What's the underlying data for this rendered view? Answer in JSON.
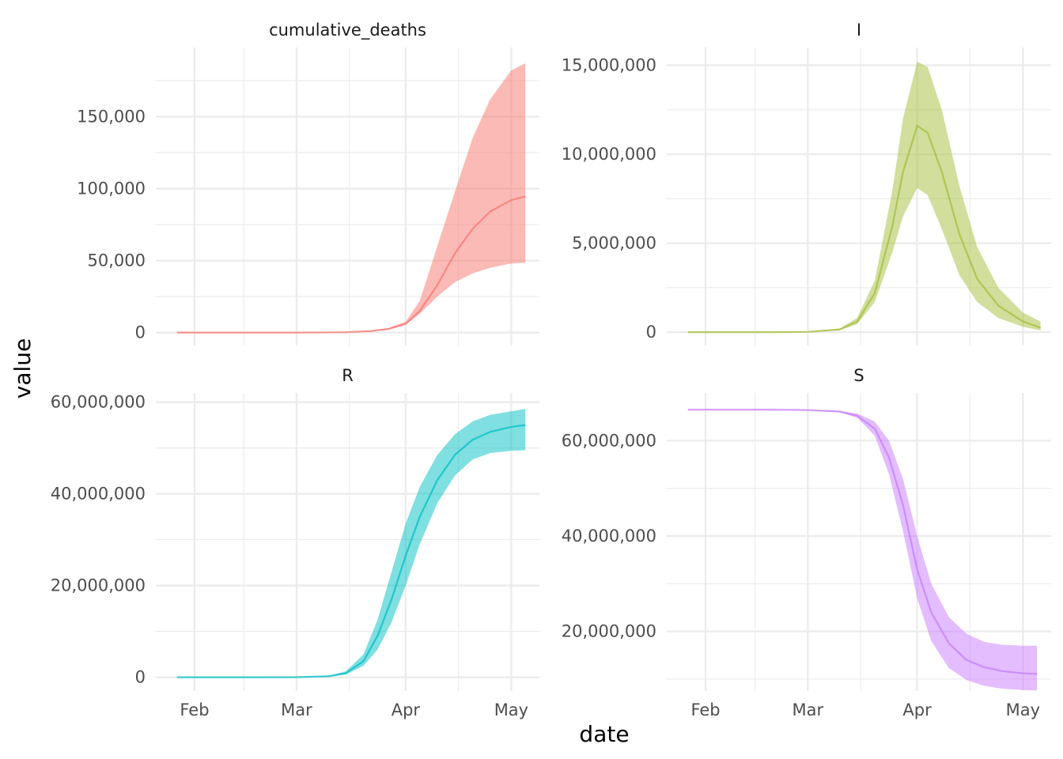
{
  "chart_data": {
    "type": "area",
    "layout": "facet-grid 2x2, free y scales",
    "xlabel": "date",
    "ylabel": "value",
    "grid": true,
    "x_ticks": [
      {
        "date": "2020-02-01",
        "label": "Feb"
      },
      {
        "date": "2020-03-01",
        "label": "Mar"
      },
      {
        "date": "2020-04-01",
        "label": "Apr"
      },
      {
        "date": "2020-05-01",
        "label": "May"
      }
    ],
    "x_range": [
      "2020-01-21",
      "2020-05-09"
    ],
    "x_minor": [
      "2020-02-15",
      "2020-03-16",
      "2020-04-16"
    ],
    "facets": [
      {
        "title": "cumulative_deaths",
        "color": "#F8766D",
        "y_range": [
          -9000,
          198000
        ],
        "y_ticks": [
          {
            "v": 0,
            "label": "0"
          },
          {
            "v": 50000,
            "label": "50,000"
          },
          {
            "v": 100000,
            "label": "100,000"
          },
          {
            "v": 150000,
            "label": "150,000"
          }
        ],
        "y_minor": [
          25000,
          75000,
          125000,
          175000
        ],
        "series": {
          "x": [
            "2020-01-27",
            "2020-02-15",
            "2020-03-01",
            "2020-03-15",
            "2020-03-22",
            "2020-03-27",
            "2020-04-01",
            "2020-04-05",
            "2020-04-10",
            "2020-04-15",
            "2020-04-20",
            "2020-04-25",
            "2020-05-01",
            "2020-05-05"
          ],
          "mid": [
            0,
            0,
            0,
            200,
            1000,
            2500,
            6000,
            15000,
            33000,
            55000,
            72000,
            84000,
            92000,
            94500
          ],
          "lower": [
            0,
            0,
            0,
            150,
            700,
            2000,
            5500,
            13000,
            25000,
            35000,
            41000,
            45000,
            48000,
            48500
          ],
          "upper": [
            0,
            0,
            0,
            250,
            1300,
            3000,
            7500,
            22000,
            60000,
            98000,
            135000,
            162000,
            182000,
            187000
          ]
        }
      },
      {
        "title": "I",
        "color": "#A3BE3A",
        "y_range": [
          -750000,
          16000000
        ],
        "y_ticks": [
          {
            "v": 0,
            "label": "0"
          },
          {
            "v": 5000000,
            "label": "5,000,000"
          },
          {
            "v": 10000000,
            "label": "10,000,000"
          },
          {
            "v": 15000000,
            "label": "15,000,000"
          }
        ],
        "y_minor": [
          2500000,
          7500000,
          12500000
        ],
        "series": {
          "x": [
            "2020-01-27",
            "2020-02-20",
            "2020-03-01",
            "2020-03-10",
            "2020-03-15",
            "2020-03-20",
            "2020-03-25",
            "2020-03-28",
            "2020-04-01",
            "2020-04-04",
            "2020-04-08",
            "2020-04-13",
            "2020-04-18",
            "2020-04-24",
            "2020-05-01",
            "2020-05-06"
          ],
          "mid": [
            0,
            0,
            15000,
            150000,
            600000,
            2200000,
            6000000,
            9000000,
            11600000,
            11200000,
            9000000,
            5500000,
            3000000,
            1500000,
            600000,
            250000
          ],
          "lower": [
            0,
            0,
            10000,
            100000,
            450000,
            1700000,
            4500000,
            6500000,
            8100000,
            7700000,
            5800000,
            3200000,
            1700000,
            800000,
            300000,
            100000
          ],
          "upper": [
            0,
            0,
            20000,
            200000,
            800000,
            2900000,
            8000000,
            12000000,
            15200000,
            14900000,
            12500000,
            8200000,
            4800000,
            2500000,
            1100000,
            600000
          ]
        }
      },
      {
        "title": "R",
        "color": "#00BFC4",
        "y_range": [
          -3000000,
          62000000
        ],
        "y_ticks": [
          {
            "v": 0,
            "label": "0"
          },
          {
            "v": 20000000,
            "label": "20,000,000"
          },
          {
            "v": 40000000,
            "label": "40,000,000"
          },
          {
            "v": 60000000,
            "label": "60,000,000"
          }
        ],
        "y_minor": [
          10000000,
          30000000,
          50000000
        ],
        "series": {
          "x": [
            "2020-01-27",
            "2020-02-20",
            "2020-03-01",
            "2020-03-10",
            "2020-03-15",
            "2020-03-20",
            "2020-03-24",
            "2020-03-28",
            "2020-04-01",
            "2020-04-05",
            "2020-04-10",
            "2020-04-15",
            "2020-04-20",
            "2020-04-25",
            "2020-05-01",
            "2020-05-05"
          ],
          "mid": [
            0,
            0,
            20000,
            200000,
            900000,
            3500000,
            9000000,
            17000000,
            26500000,
            35000000,
            43000000,
            48500000,
            51800000,
            53500000,
            54600000,
            55000000
          ],
          "lower": [
            0,
            0,
            15000,
            150000,
            600000,
            2500000,
            6000000,
            12000000,
            20000000,
            29000000,
            38000000,
            44000000,
            47500000,
            48900000,
            49400000,
            49500000
          ],
          "upper": [
            0,
            0,
            25000,
            300000,
            1300000,
            5000000,
            12500000,
            23000000,
            33500000,
            41500000,
            48500000,
            53000000,
            55800000,
            57200000,
            58000000,
            58500000
          ]
        }
      },
      {
        "title": "S",
        "color": "#C77CFF",
        "y_range": [
          7500000,
          70000000
        ],
        "y_ticks": [
          {
            "v": 20000000,
            "label": "20,000,000"
          },
          {
            "v": 40000000,
            "label": "40,000,000"
          },
          {
            "v": 60000000,
            "label": "60,000,000"
          }
        ],
        "y_minor": [
          10000000,
          30000000,
          50000000
        ],
        "series": {
          "x": [
            "2020-01-27",
            "2020-02-20",
            "2020-03-01",
            "2020-03-10",
            "2020-03-15",
            "2020-03-20",
            "2020-03-24",
            "2020-03-28",
            "2020-04-01",
            "2020-04-05",
            "2020-04-10",
            "2020-04-15",
            "2020-04-20",
            "2020-04-25",
            "2020-05-01",
            "2020-05-05"
          ],
          "mid": [
            66500000,
            66500000,
            66400000,
            66100000,
            65200000,
            62500000,
            56500000,
            46500000,
            33000000,
            24000000,
            17500000,
            14000000,
            12500000,
            11700000,
            11200000,
            11100000
          ],
          "lower": [
            66500000,
            66500000,
            66400000,
            66000000,
            64800000,
            61000000,
            53000000,
            41000000,
            27000000,
            18000000,
            12300000,
            9800000,
            8600000,
            8000000,
            7700000,
            7600000
          ],
          "upper": [
            66500000,
            66500000,
            66450000,
            66200000,
            65700000,
            64000000,
            60000000,
            52000000,
            40000000,
            30000000,
            23000000,
            19500000,
            17800000,
            17200000,
            17000000,
            17000000
          ]
        }
      }
    ]
  }
}
